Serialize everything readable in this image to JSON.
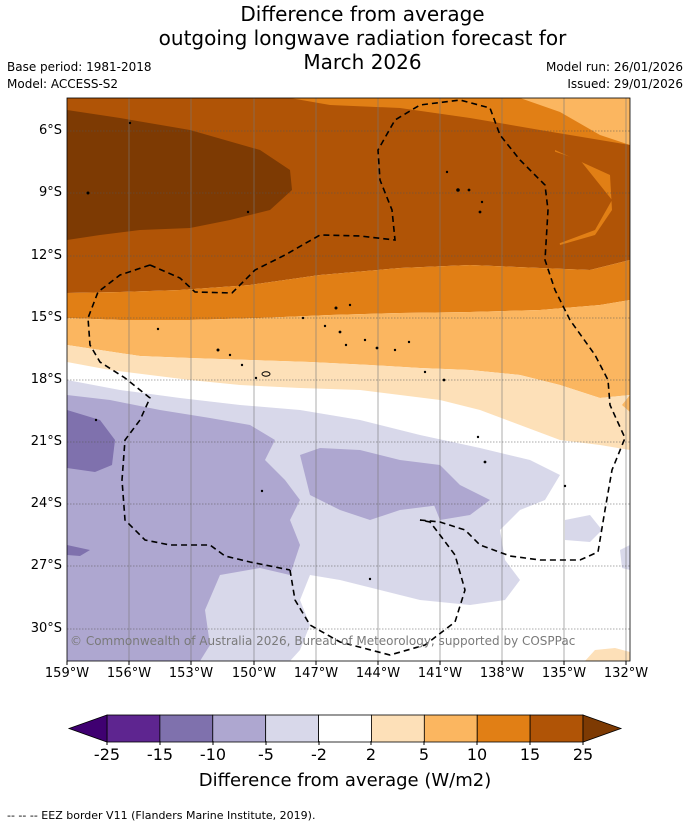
{
  "header": {
    "title_line1": "Difference from average",
    "title_line2": "outgoing longwave radiation forecast for",
    "title_line3": "March 2026",
    "base_period": "Base period: 1981-2018",
    "model": "Model: ACCESS-S2",
    "model_run": "Model run: 26/01/2026",
    "issued": "Issued: 29/01/2026"
  },
  "map": {
    "lat_labels": [
      "6°S",
      "9°S",
      "12°S",
      "15°S",
      "18°S",
      "21°S",
      "24°S",
      "27°S",
      "30°S"
    ],
    "lon_labels": [
      "159°W",
      "156°W",
      "153°W",
      "150°W",
      "147°W",
      "144°W",
      "141°W",
      "138°W",
      "135°W",
      "132°W"
    ],
    "credit": "© Commonwealth of Australia 2026, Bureau of Meteorology, supported by COSPPac"
  },
  "colorbar": {
    "ticks": [
      "-25",
      "-15",
      "-10",
      "-5",
      "-2",
      "2",
      "5",
      "10",
      "15",
      "25"
    ],
    "colors": {
      "extend_low": "#3f0071",
      "b1": "#5e2590",
      "b2": "#7f71ad",
      "b3": "#aea7d0",
      "b4": "#d8d8ea",
      "b5": "#ffffff",
      "b6": "#fde0b8",
      "b7": "#fbb660",
      "b8": "#e17f15",
      "b9": "#b05406",
      "extend_high": "#7d3a03"
    },
    "label": "Difference from average (W/m2)"
  },
  "footer": {
    "eez_note": "-- -- -- EEZ border V11 (Flanders Marine Institute, 2019)."
  }
}
